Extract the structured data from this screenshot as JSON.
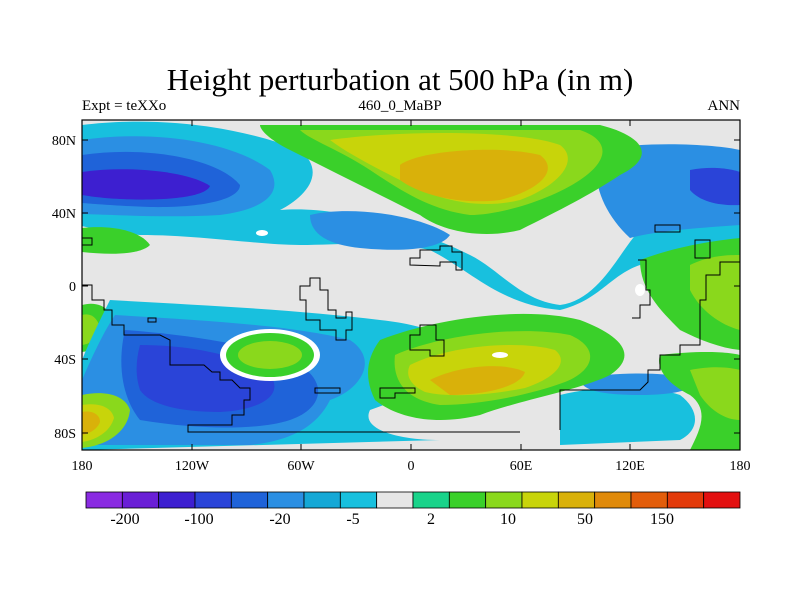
{
  "title": "Height perturbation at 500 hPa (in m)",
  "subtitle_left": "Expt = teXXo",
  "subtitle_center": "460_0_MaBP",
  "subtitle_right": "ANN",
  "y_ticks": [
    "80N",
    "40N",
    "0",
    "40S",
    "80S"
  ],
  "x_ticks": [
    "180",
    "120W",
    "60W",
    "0",
    "60E",
    "120E",
    "180"
  ],
  "colorbar": {
    "colors": [
      "#8a2be2",
      "#6a1fd6",
      "#3d1fd0",
      "#2a44d8",
      "#1f63d9",
      "#2b8fe3",
      "#15a8d6",
      "#18c0de",
      "#e6e6e6",
      "#19d38a",
      "#3ad02a",
      "#8ad81c",
      "#c8d40a",
      "#d9b10a",
      "#e08a0a",
      "#e35d0a",
      "#e33a0a",
      "#e31010"
    ],
    "labels": [
      "-200",
      "-100",
      "-20",
      "-5",
      "2",
      "10",
      "50",
      "150"
    ]
  },
  "palette": {
    "neutral": "#e6e6e6",
    "cyan": "#18c0de",
    "blue_light": "#2b8fe3",
    "blue": "#1f63d9",
    "blue_dark": "#2a44d8",
    "navy": "#3d1fd0",
    "green": "#3ad02a",
    "green_light": "#19d38a",
    "yellow_green": "#8ad81c",
    "yellow": "#c8d40a",
    "orange": "#d9b10a",
    "white": "#ffffff"
  }
}
